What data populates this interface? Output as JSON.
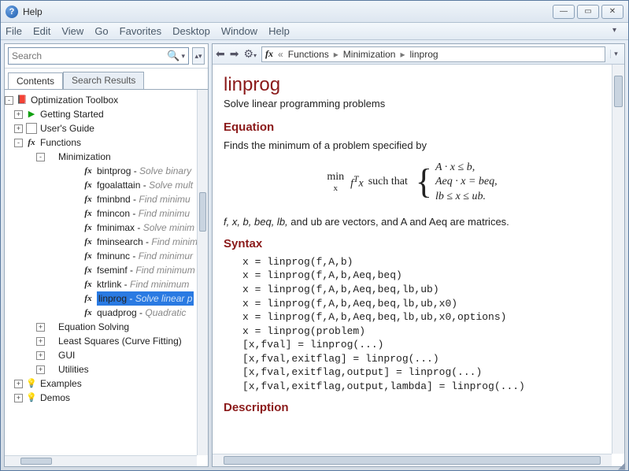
{
  "window": {
    "title": "Help"
  },
  "menu": {
    "items": [
      "File",
      "Edit",
      "View",
      "Go",
      "Favorites",
      "Desktop",
      "Window",
      "Help"
    ]
  },
  "left": {
    "search_placeholder": "Search",
    "tabs": {
      "contents": "Contents",
      "results": "Search Results"
    },
    "tree": {
      "root": "Optimization Toolbox",
      "getting_started": "Getting Started",
      "users_guide": "User's Guide",
      "functions": "Functions",
      "minimization": "Minimization",
      "fx_items": [
        {
          "name": "bintprog",
          "desc": "Solve binary"
        },
        {
          "name": "fgoalattain",
          "desc": "Solve mult"
        },
        {
          "name": "fminbnd",
          "desc": "Find minimu"
        },
        {
          "name": "fmincon",
          "desc": "Find minimu"
        },
        {
          "name": "fminimax",
          "desc": "Solve minim"
        },
        {
          "name": "fminsearch",
          "desc": "Find minim"
        },
        {
          "name": "fminunc",
          "desc": "Find minimur"
        },
        {
          "name": "fseminf",
          "desc": "Find minimum"
        },
        {
          "name": "ktrlink",
          "desc": "Find minimum"
        },
        {
          "name": "linprog",
          "desc": "Solve linear p",
          "selected": true
        },
        {
          "name": "quadprog",
          "desc": "Quadratic"
        }
      ],
      "equation_solving": "Equation Solving",
      "least_squares": "Least Squares (Curve Fitting)",
      "gui": "GUI",
      "utilities": "Utilities",
      "examples": "Examples",
      "demos": "Demos"
    }
  },
  "right": {
    "breadcrumb": {
      "fx": "fx",
      "lvl1": "Functions",
      "lvl2": "Minimization",
      "lvl3": "linprog"
    },
    "title": "linprog",
    "subtitle": "Solve linear programming problems",
    "h_equation": "Equation",
    "eq_intro": "Finds the minimum of a problem specified by",
    "eq": {
      "min": "min",
      "minvar": "x",
      "ft": "f",
      "sup": "T",
      "xvar": "x",
      "suchthat": "such that",
      "l1": "A · x ≤ b,",
      "l2": "Aeq · x = beq,",
      "l3": "lb ≤ x ≤ ub."
    },
    "eq_after_pre": "f, x, b, beq, lb, ",
    "eq_after_mid": "and ub are vectors, and A and Aeq are matrices.",
    "h_syntax": "Syntax",
    "syntax_code": "x = linprog(f,A,b)\nx = linprog(f,A,b,Aeq,beq)\nx = linprog(f,A,b,Aeq,beq,lb,ub)\nx = linprog(f,A,b,Aeq,beq,lb,ub,x0)\nx = linprog(f,A,b,Aeq,beq,lb,ub,x0,options)\nx = linprog(problem)\n[x,fval] = linprog(...)\n[x,fval,exitflag] = linprog(...)\n[x,fval,exitflag,output] = linprog(...)\n[x,fval,exitflag,output,lambda] = linprog(...)",
    "h_description": "Description"
  },
  "colors": {
    "heading": "#8b1a1a",
    "selection": "#2a7ae2",
    "window_border": "#5a7aa0"
  }
}
